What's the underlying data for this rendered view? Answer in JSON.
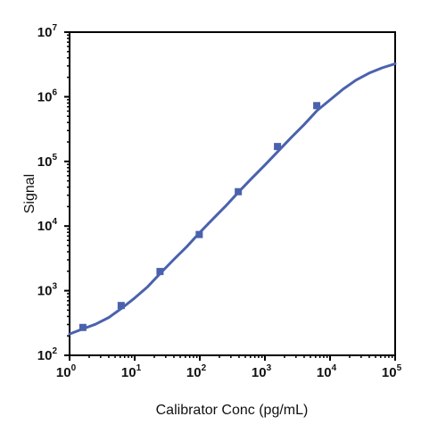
{
  "chart_data": {
    "type": "scatter",
    "xlabel": "Calibrator Conc (pg/mL)",
    "ylabel": "Signal",
    "x_scale": "log",
    "y_scale": "log",
    "xlim": [
      1,
      100000
    ],
    "ylim": [
      100,
      10000000
    ],
    "x_ticks": [
      {
        "base": "10",
        "exp": "0",
        "value": 1
      },
      {
        "base": "10",
        "exp": "1",
        "value": 10
      },
      {
        "base": "10",
        "exp": "2",
        "value": 100
      },
      {
        "base": "10",
        "exp": "3",
        "value": 1000
      },
      {
        "base": "10",
        "exp": "4",
        "value": 10000
      },
      {
        "base": "10",
        "exp": "5",
        "value": 100000
      }
    ],
    "y_ticks": [
      {
        "base": "10",
        "exp": "2",
        "value": 100
      },
      {
        "base": "10",
        "exp": "3",
        "value": 1000
      },
      {
        "base": "10",
        "exp": "4",
        "value": 10000
      },
      {
        "base": "10",
        "exp": "5",
        "value": 100000
      },
      {
        "base": "10",
        "exp": "6",
        "value": 1000000
      },
      {
        "base": "10",
        "exp": "7",
        "value": 10000000
      }
    ],
    "grid": false,
    "series": [
      {
        "points": [
          {
            "x": 1.6,
            "y": 270
          },
          {
            "x": 6.2,
            "y": 590
          },
          {
            "x": 24.5,
            "y": 1980
          },
          {
            "x": 98,
            "y": 7400
          },
          {
            "x": 390,
            "y": 34000
          },
          {
            "x": 1560,
            "y": 170000
          },
          {
            "x": 6250,
            "y": 730000
          }
        ],
        "fit": [
          {
            "x": 1,
            "y": 214
          },
          {
            "x": 1.6,
            "y": 256
          },
          {
            "x": 2.5,
            "y": 302
          },
          {
            "x": 4,
            "y": 385
          },
          {
            "x": 6.3,
            "y": 534
          },
          {
            "x": 10,
            "y": 770
          },
          {
            "x": 15.8,
            "y": 1150
          },
          {
            "x": 25,
            "y": 1870
          },
          {
            "x": 40,
            "y": 3050
          },
          {
            "x": 63,
            "y": 4800
          },
          {
            "x": 100,
            "y": 7950
          },
          {
            "x": 158,
            "y": 12800
          },
          {
            "x": 251,
            "y": 20500
          },
          {
            "x": 398,
            "y": 34000
          },
          {
            "x": 631,
            "y": 55000
          },
          {
            "x": 1000,
            "y": 88000
          },
          {
            "x": 1585,
            "y": 143000
          },
          {
            "x": 2512,
            "y": 232000
          },
          {
            "x": 3981,
            "y": 370000
          },
          {
            "x": 6310,
            "y": 610000
          },
          {
            "x": 10000,
            "y": 895000
          },
          {
            "x": 15849,
            "y": 1310000
          },
          {
            "x": 25119,
            "y": 1810000
          },
          {
            "x": 39811,
            "y": 2320000
          },
          {
            "x": 63096,
            "y": 2800000
          },
          {
            "x": 100000,
            "y": 3240000
          }
        ]
      }
    ],
    "colors": {
      "series": "#4a62ad",
      "axes": "#000000"
    }
  }
}
